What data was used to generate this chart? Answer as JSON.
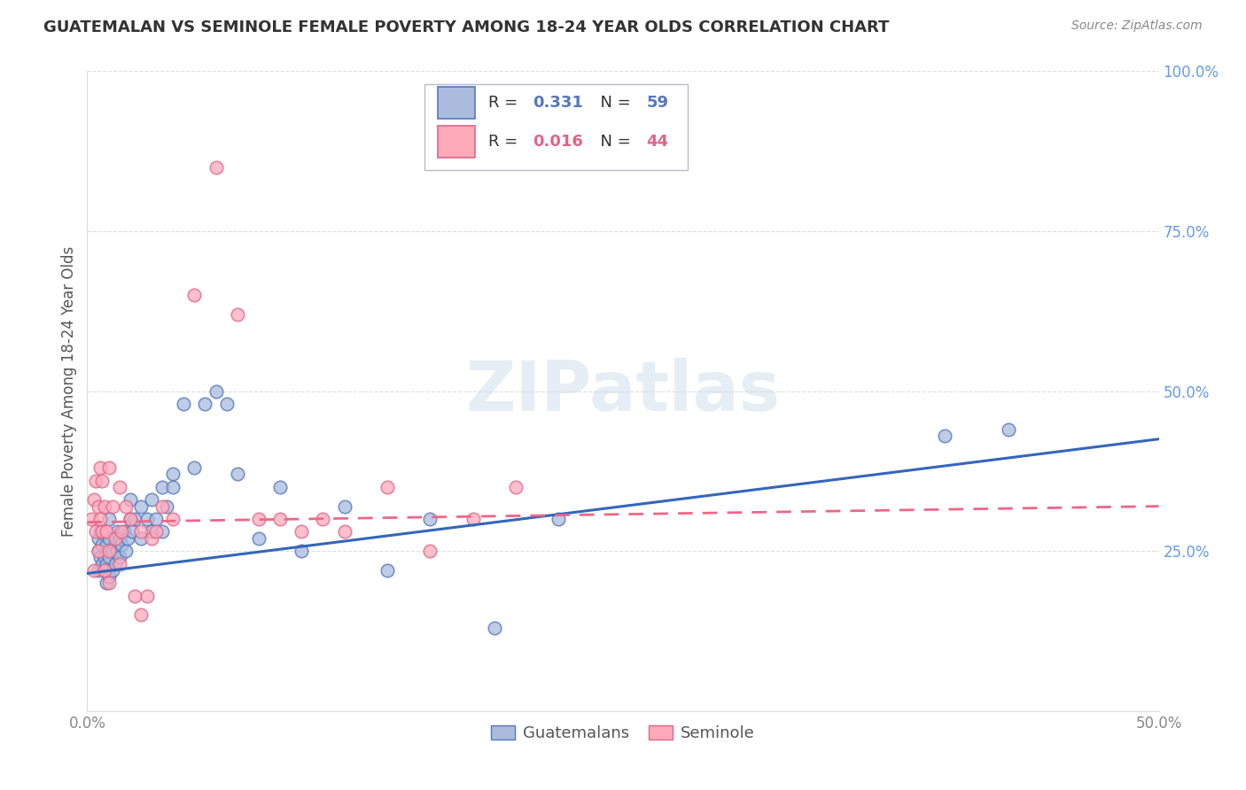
{
  "title": "GUATEMALAN VS SEMINOLE FEMALE POVERTY AMONG 18-24 YEAR OLDS CORRELATION CHART",
  "source": "Source: ZipAtlas.com",
  "ylabel": "Female Poverty Among 18-24 Year Olds",
  "xlim": [
    0.0,
    0.5
  ],
  "ylim": [
    0.0,
    1.0
  ],
  "guatemalans_R": 0.331,
  "guatemalans_N": 59,
  "seminole_R": 0.016,
  "seminole_N": 44,
  "blue_fill": "#AABBDD",
  "blue_edge": "#5577BB",
  "pink_fill": "#FFAABB",
  "pink_edge": "#DD6688",
  "blue_line_color": "#3366BB",
  "pink_line_color": "#EE6688",
  "legend_label_blue": "Guatemalans",
  "legend_label_pink": "Seminole",
  "watermark_text": "ZIPatlas",
  "watermark_color": "#CCDDED",
  "title_color": "#333333",
  "source_color": "#888888",
  "ylabel_color": "#555555",
  "tick_color": "#888888",
  "right_tick_color": "#6699EE",
  "grid_color": "#DDDDDD",
  "guatemalans_x": [
    0.005,
    0.005,
    0.005,
    0.006,
    0.006,
    0.007,
    0.007,
    0.008,
    0.008,
    0.009,
    0.009,
    0.009,
    0.01,
    0.01,
    0.01,
    0.01,
    0.012,
    0.012,
    0.013,
    0.013,
    0.014,
    0.014,
    0.015,
    0.015,
    0.016,
    0.017,
    0.018,
    0.019,
    0.02,
    0.02,
    0.021,
    0.022,
    0.025,
    0.025,
    0.028,
    0.03,
    0.03,
    0.032,
    0.035,
    0.035,
    0.037,
    0.04,
    0.04,
    0.045,
    0.05,
    0.055,
    0.06,
    0.065,
    0.07,
    0.08,
    0.09,
    0.1,
    0.12,
    0.14,
    0.16,
    0.19,
    0.22,
    0.4,
    0.43
  ],
  "guatemalans_y": [
    0.22,
    0.25,
    0.27,
    0.24,
    0.28,
    0.23,
    0.26,
    0.22,
    0.24,
    0.2,
    0.23,
    0.26,
    0.21,
    0.24,
    0.27,
    0.3,
    0.22,
    0.25,
    0.23,
    0.26,
    0.25,
    0.28,
    0.24,
    0.27,
    0.26,
    0.28,
    0.25,
    0.27,
    0.3,
    0.33,
    0.28,
    0.3,
    0.27,
    0.32,
    0.3,
    0.28,
    0.33,
    0.3,
    0.28,
    0.35,
    0.32,
    0.35,
    0.37,
    0.48,
    0.38,
    0.48,
    0.5,
    0.48,
    0.37,
    0.27,
    0.35,
    0.25,
    0.32,
    0.22,
    0.3,
    0.13,
    0.3,
    0.43,
    0.44
  ],
  "seminole_x": [
    0.002,
    0.003,
    0.003,
    0.004,
    0.004,
    0.005,
    0.005,
    0.006,
    0.006,
    0.007,
    0.007,
    0.008,
    0.008,
    0.009,
    0.01,
    0.01,
    0.01,
    0.012,
    0.013,
    0.015,
    0.015,
    0.016,
    0.018,
    0.02,
    0.022,
    0.025,
    0.025,
    0.028,
    0.03,
    0.032,
    0.035,
    0.04,
    0.05,
    0.06,
    0.07,
    0.08,
    0.09,
    0.1,
    0.11,
    0.12,
    0.14,
    0.16,
    0.18,
    0.2
  ],
  "seminole_y": [
    0.3,
    0.22,
    0.33,
    0.28,
    0.36,
    0.25,
    0.32,
    0.3,
    0.38,
    0.28,
    0.36,
    0.22,
    0.32,
    0.28,
    0.2,
    0.25,
    0.38,
    0.32,
    0.27,
    0.23,
    0.35,
    0.28,
    0.32,
    0.3,
    0.18,
    0.28,
    0.15,
    0.18,
    0.27,
    0.28,
    0.32,
    0.3,
    0.65,
    0.85,
    0.62,
    0.3,
    0.3,
    0.28,
    0.3,
    0.28,
    0.35,
    0.25,
    0.3,
    0.35
  ]
}
